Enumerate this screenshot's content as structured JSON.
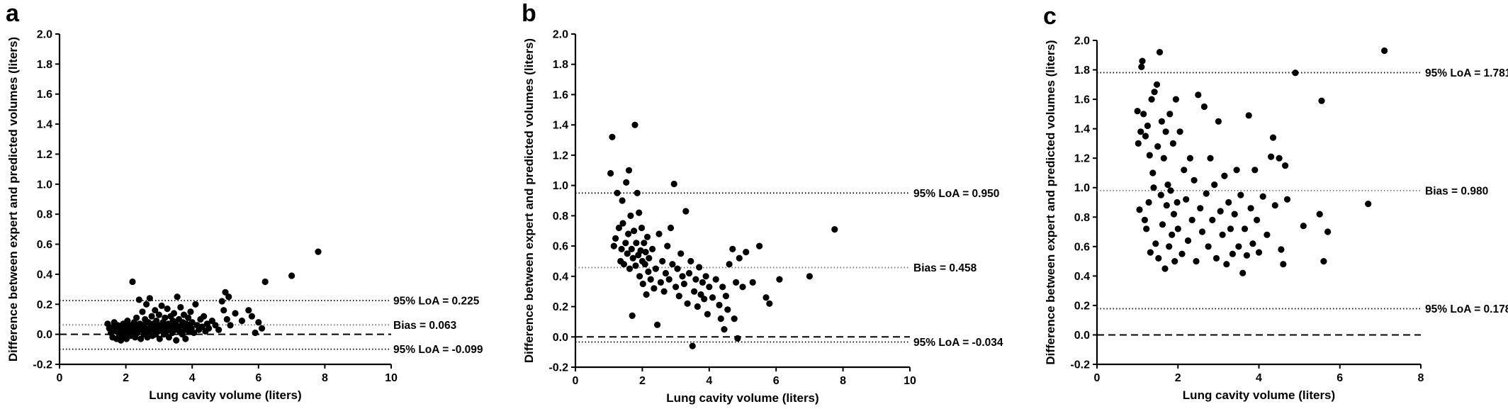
{
  "chart_data": [
    {
      "panel": "a",
      "type": "scatter",
      "xlabel": "Lung cavity volume (liters)",
      "ylabel": "Difference between expert and predicted volumes (liters)",
      "xlim": [
        0,
        10
      ],
      "ylim": [
        -0.2,
        2.0
      ],
      "xticks": [
        "0",
        "2",
        "4",
        "6",
        "8",
        "10"
      ],
      "yticks": [
        "-0.2",
        "0.0",
        "0.2",
        "0.4",
        "0.6",
        "0.8",
        "1.0",
        "1.2",
        "1.4",
        "1.6",
        "1.8",
        "2.0"
      ],
      "reference_lines": [
        {
          "label": "95% LoA = 0.225",
          "y": 0.225,
          "style": "dotted"
        },
        {
          "label": "Bias = 0.063",
          "y": 0.063,
          "style": "dotted"
        },
        {
          "label": "95% LoA = -0.099",
          "y": -0.099,
          "style": "dotted"
        },
        {
          "label": "",
          "y": 0.0,
          "style": "dashed"
        }
      ],
      "points": [
        [
          1.45,
          0.07
        ],
        [
          1.5,
          0.04
        ],
        [
          1.55,
          0.01
        ],
        [
          1.6,
          -0.02
        ],
        [
          1.62,
          0.05
        ],
        [
          1.65,
          0.08
        ],
        [
          1.7,
          0.02
        ],
        [
          1.72,
          -0.03
        ],
        [
          1.75,
          0.06
        ],
        [
          1.8,
          0.0
        ],
        [
          1.82,
          0.03
        ],
        [
          1.85,
          -0.04
        ],
        [
          1.88,
          0.04
        ],
        [
          1.9,
          0.01
        ],
        [
          1.92,
          0.07
        ],
        [
          1.95,
          -0.02
        ],
        [
          1.98,
          0.05
        ],
        [
          2.0,
          0.02
        ],
        [
          2.02,
          -0.03
        ],
        [
          2.05,
          0.09
        ],
        [
          2.08,
          0.03
        ],
        [
          2.1,
          0.0
        ],
        [
          2.12,
          0.06
        ],
        [
          2.15,
          -0.01
        ],
        [
          2.18,
          0.04
        ],
        [
          2.2,
          0.35
        ],
        [
          2.22,
          0.02
        ],
        [
          2.25,
          0.08
        ],
        [
          2.28,
          -0.02
        ],
        [
          2.3,
          0.05
        ],
        [
          2.32,
          0.11
        ],
        [
          2.35,
          0.01
        ],
        [
          2.38,
          0.04
        ],
        [
          2.4,
          0.23
        ],
        [
          2.42,
          0.07
        ],
        [
          2.45,
          -0.03
        ],
        [
          2.48,
          0.03
        ],
        [
          2.5,
          0.15
        ],
        [
          2.52,
          0.06
        ],
        [
          2.55,
          0.0
        ],
        [
          2.58,
          0.1
        ],
        [
          2.6,
          0.04
        ],
        [
          2.62,
          0.2
        ],
        [
          2.65,
          -0.02
        ],
        [
          2.68,
          0.08
        ],
        [
          2.7,
          0.02
        ],
        [
          2.72,
          0.24
        ],
        [
          2.75,
          0.05
        ],
        [
          2.78,
          0.12
        ],
        [
          2.8,
          -0.01
        ],
        [
          2.82,
          0.07
        ],
        [
          2.85,
          0.03
        ],
        [
          2.88,
          0.16
        ],
        [
          2.9,
          0.0
        ],
        [
          2.92,
          0.09
        ],
        [
          2.95,
          0.05
        ],
        [
          2.98,
          0.02
        ],
        [
          3.0,
          0.13
        ],
        [
          3.02,
          -0.03
        ],
        [
          3.05,
          0.06
        ],
        [
          3.08,
          0.19
        ],
        [
          3.1,
          0.03
        ],
        [
          3.12,
          0.08
        ],
        [
          3.15,
          0.0
        ],
        [
          3.18,
          0.11
        ],
        [
          3.2,
          0.05
        ],
        [
          3.22,
          0.02
        ],
        [
          3.25,
          0.17
        ],
        [
          3.28,
          0.07
        ],
        [
          3.3,
          -0.02
        ],
        [
          3.32,
          0.04
        ],
        [
          3.35,
          0.12
        ],
        [
          3.38,
          0.06
        ],
        [
          3.4,
          0.01
        ],
        [
          3.42,
          0.09
        ],
        [
          3.45,
          0.14
        ],
        [
          3.48,
          0.03
        ],
        [
          3.5,
          0.07
        ],
        [
          3.52,
          -0.04
        ],
        [
          3.55,
          0.25
        ],
        [
          3.58,
          0.05
        ],
        [
          3.6,
          0.1
        ],
        [
          3.62,
          0.02
        ],
        [
          3.65,
          0.18
        ],
        [
          3.68,
          0.06
        ],
        [
          3.7,
          0.0
        ],
        [
          3.72,
          0.08
        ],
        [
          3.75,
          0.13
        ],
        [
          3.78,
          0.03
        ],
        [
          3.8,
          -0.03
        ],
        [
          3.82,
          0.07
        ],
        [
          3.85,
          0.04
        ],
        [
          3.88,
          0.11
        ],
        [
          3.9,
          0.02
        ],
        [
          3.92,
          0.06
        ],
        [
          3.95,
          0.15
        ],
        [
          3.98,
          0.04
        ],
        [
          4.0,
          0.08
        ],
        [
          4.05,
          0.01
        ],
        [
          4.1,
          0.2
        ],
        [
          4.15,
          0.06
        ],
        [
          4.2,
          0.03
        ],
        [
          4.25,
          0.1
        ],
        [
          4.3,
          0.05
        ],
        [
          4.35,
          0.12
        ],
        [
          4.4,
          0.02
        ],
        [
          4.45,
          0.07
        ],
        [
          4.5,
          0.04
        ],
        [
          4.6,
          0.09
        ],
        [
          4.7,
          0.06
        ],
        [
          4.8,
          0.03
        ],
        [
          4.9,
          0.22
        ],
        [
          4.95,
          0.16
        ],
        [
          5.0,
          0.28
        ],
        [
          5.05,
          0.1
        ],
        [
          5.1,
          0.25
        ],
        [
          5.15,
          0.06
        ],
        [
          5.3,
          0.14
        ],
        [
          5.5,
          0.09
        ],
        [
          5.7,
          0.16
        ],
        [
          5.8,
          0.12
        ],
        [
          5.9,
          0.01
        ],
        [
          6.0,
          0.08
        ],
        [
          6.1,
          0.04
        ],
        [
          6.2,
          0.35
        ],
        [
          7.0,
          0.39
        ],
        [
          7.8,
          0.55
        ]
      ]
    },
    {
      "panel": "b",
      "type": "scatter",
      "xlabel": "Lung cavity volume (liters)",
      "ylabel": "Difference between expert and predicted volumes (liters)",
      "xlim": [
        0,
        10
      ],
      "ylim": [
        -0.2,
        2.0
      ],
      "xticks": [
        "0",
        "2",
        "4",
        "6",
        "8",
        "10"
      ],
      "yticks": [
        "-0.2",
        "0.0",
        "0.2",
        "0.4",
        "0.6",
        "0.8",
        "1.0",
        "1.2",
        "1.4",
        "1.6",
        "1.8",
        "2.0"
      ],
      "reference_lines": [
        {
          "label": "95% LoA = 0.950",
          "y": 0.95,
          "style": "dotted"
        },
        {
          "label": "Bias = 0.458",
          "y": 0.458,
          "style": "dotted"
        },
        {
          "label": "95% LoA = -0.034",
          "y": -0.034,
          "style": "dotted"
        },
        {
          "label": "",
          "y": 0.0,
          "style": "dashed"
        }
      ],
      "points": [
        [
          1.05,
          1.08
        ],
        [
          1.1,
          1.32
        ],
        [
          1.15,
          0.6
        ],
        [
          1.2,
          0.65
        ],
        [
          1.25,
          0.95
        ],
        [
          1.3,
          0.72
        ],
        [
          1.35,
          0.5
        ],
        [
          1.38,
          0.58
        ],
        [
          1.4,
          0.9
        ],
        [
          1.42,
          0.75
        ],
        [
          1.45,
          0.48
        ],
        [
          1.5,
          0.62
        ],
        [
          1.52,
          1.02
        ],
        [
          1.55,
          0.55
        ],
        [
          1.58,
          0.68
        ],
        [
          1.6,
          1.1
        ],
        [
          1.62,
          0.45
        ],
        [
          1.65,
          0.8
        ],
        [
          1.68,
          0.58
        ],
        [
          1.7,
          0.14
        ],
        [
          1.72,
          0.52
        ],
        [
          1.75,
          0.7
        ],
        [
          1.78,
          1.4
        ],
        [
          1.8,
          0.47
        ],
        [
          1.82,
          0.62
        ],
        [
          1.85,
          0.95
        ],
        [
          1.88,
          0.54
        ],
        [
          1.9,
          0.82
        ],
        [
          1.92,
          0.4
        ],
        [
          1.95,
          0.57
        ],
        [
          1.98,
          0.72
        ],
        [
          2.0,
          0.5
        ],
        [
          2.02,
          0.35
        ],
        [
          2.05,
          0.62
        ],
        [
          2.08,
          0.48
        ],
        [
          2.1,
          0.56
        ],
        [
          2.12,
          0.28
        ],
        [
          2.15,
          0.66
        ],
        [
          2.18,
          0.43
        ],
        [
          2.2,
          0.52
        ],
        [
          2.25,
          0.38
        ],
        [
          2.3,
          0.58
        ],
        [
          2.35,
          0.32
        ],
        [
          2.4,
          0.45
        ],
        [
          2.45,
          0.08
        ],
        [
          2.5,
          0.68
        ],
        [
          2.55,
          0.36
        ],
        [
          2.6,
          0.5
        ],
        [
          2.65,
          0.3
        ],
        [
          2.7,
          0.42
        ],
        [
          2.75,
          0.6
        ],
        [
          2.8,
          0.38
        ],
        [
          2.85,
          0.72
        ],
        [
          2.9,
          0.48
        ],
        [
          2.95,
          1.01
        ],
        [
          3.0,
          0.33
        ],
        [
          3.05,
          0.45
        ],
        [
          3.1,
          0.27
        ],
        [
          3.15,
          0.55
        ],
        [
          3.2,
          0.4
        ],
        [
          3.25,
          0.35
        ],
        [
          3.3,
          0.83
        ],
        [
          3.35,
          0.22
        ],
        [
          3.4,
          0.42
        ],
        [
          3.45,
          0.5
        ],
        [
          3.5,
          -0.06
        ],
        [
          3.55,
          0.3
        ],
        [
          3.6,
          0.38
        ],
        [
          3.65,
          0.2
        ],
        [
          3.7,
          0.46
        ],
        [
          3.75,
          0.28
        ],
        [
          3.8,
          0.36
        ],
        [
          3.85,
          0.25
        ],
        [
          3.9,
          0.4
        ],
        [
          3.95,
          0.15
        ],
        [
          4.0,
          0.33
        ],
        [
          4.1,
          0.26
        ],
        [
          4.2,
          0.38
        ],
        [
          4.3,
          0.21
        ],
        [
          4.35,
          0.12
        ],
        [
          4.4,
          0.33
        ],
        [
          4.45,
          0.05
        ],
        [
          4.5,
          0.27
        ],
        [
          4.55,
          0.18
        ],
        [
          4.6,
          0.48
        ],
        [
          4.7,
          0.58
        ],
        [
          4.75,
          0.12
        ],
        [
          4.8,
          0.36
        ],
        [
          4.85,
          -0.01
        ],
        [
          4.9,
          0.52
        ],
        [
          5.0,
          0.33
        ],
        [
          5.1,
          0.56
        ],
        [
          5.3,
          0.36
        ],
        [
          5.5,
          0.6
        ],
        [
          5.7,
          0.26
        ],
        [
          5.8,
          0.22
        ],
        [
          6.1,
          0.38
        ],
        [
          7.0,
          0.4
        ],
        [
          7.75,
          0.71
        ]
      ]
    },
    {
      "panel": "c",
      "type": "scatter",
      "xlabel": "Lung cavity volume (liters)",
      "ylabel": "Difference between expert and predicted volumes (liters)",
      "xlim": [
        0,
        8
      ],
      "ylim": [
        -0.2,
        2.0
      ],
      "xticks": [
        "0",
        "2",
        "4",
        "6",
        "8"
      ],
      "yticks": [
        "-0.2",
        "0.0",
        "0.2",
        "0.4",
        "0.6",
        "0.8",
        "1.0",
        "1.2",
        "1.4",
        "1.6",
        "1.8",
        "2.0"
      ],
      "reference_lines": [
        {
          "label": "95% LoA = 1.781",
          "y": 1.781,
          "style": "dotted"
        },
        {
          "label": "Bias = 0.980",
          "y": 0.98,
          "style": "dotted"
        },
        {
          "label": "95% LoA = 0.178",
          "y": 0.178,
          "style": "dotted"
        },
        {
          "label": "",
          "y": 0.0,
          "style": "dashed"
        }
      ],
      "points": [
        [
          1.0,
          1.52
        ],
        [
          1.02,
          1.3
        ],
        [
          1.05,
          0.85
        ],
        [
          1.08,
          1.38
        ],
        [
          1.1,
          1.82
        ],
        [
          1.12,
          1.86
        ],
        [
          1.15,
          1.5
        ],
        [
          1.18,
          0.78
        ],
        [
          1.2,
          1.35
        ],
        [
          1.22,
          0.72
        ],
        [
          1.25,
          1.42
        ],
        [
          1.28,
          0.9
        ],
        [
          1.3,
          1.22
        ],
        [
          1.32,
          0.56
        ],
        [
          1.35,
          1.6
        ],
        [
          1.38,
          1.1
        ],
        [
          1.4,
          1.0
        ],
        [
          1.42,
          1.65
        ],
        [
          1.45,
          0.62
        ],
        [
          1.48,
          1.7
        ],
        [
          1.5,
          1.28
        ],
        [
          1.52,
          0.52
        ],
        [
          1.55,
          1.92
        ],
        [
          1.58,
          0.95
        ],
        [
          1.6,
          1.45
        ],
        [
          1.62,
          0.75
        ],
        [
          1.65,
          1.2
        ],
        [
          1.68,
          0.45
        ],
        [
          1.7,
          1.38
        ],
        [
          1.72,
          0.88
        ],
        [
          1.75,
          1.02
        ],
        [
          1.78,
          0.6
        ],
        [
          1.8,
          1.5
        ],
        [
          1.82,
          0.98
        ],
        [
          1.85,
          0.68
        ],
        [
          1.88,
          1.3
        ],
        [
          1.9,
          0.82
        ],
        [
          1.92,
          0.5
        ],
        [
          1.95,
          1.6
        ],
        [
          1.98,
          0.9
        ],
        [
          2.0,
          0.72
        ],
        [
          2.05,
          1.38
        ],
        [
          2.1,
          0.55
        ],
        [
          2.15,
          1.12
        ],
        [
          2.2,
          0.92
        ],
        [
          2.25,
          0.64
        ],
        [
          2.3,
          1.2
        ],
        [
          2.35,
          0.78
        ],
        [
          2.4,
          1.05
        ],
        [
          2.45,
          0.5
        ],
        [
          2.5,
          1.63
        ],
        [
          2.55,
          0.86
        ],
        [
          2.6,
          0.7
        ],
        [
          2.65,
          1.55
        ],
        [
          2.7,
          0.96
        ],
        [
          2.75,
          0.6
        ],
        [
          2.8,
          1.2
        ],
        [
          2.85,
          0.78
        ],
        [
          2.9,
          1.02
        ],
        [
          2.95,
          0.52
        ],
        [
          3.0,
          1.45
        ],
        [
          3.05,
          0.84
        ],
        [
          3.1,
          0.68
        ],
        [
          3.15,
          1.08
        ],
        [
          3.2,
          0.48
        ],
        [
          3.25,
          0.9
        ],
        [
          3.3,
          0.72
        ],
        [
          3.35,
          0.55
        ],
        [
          3.4,
          0.82
        ],
        [
          3.45,
          1.12
        ],
        [
          3.5,
          0.6
        ],
        [
          3.55,
          0.95
        ],
        [
          3.6,
          0.42
        ],
        [
          3.65,
          0.72
        ],
        [
          3.7,
          0.54
        ],
        [
          3.75,
          1.49
        ],
        [
          3.8,
          0.86
        ],
        [
          3.85,
          0.62
        ],
        [
          3.9,
          1.12
        ],
        [
          3.95,
          0.78
        ],
        [
          4.0,
          0.56
        ],
        [
          4.1,
          0.94
        ],
        [
          4.2,
          0.68
        ],
        [
          4.3,
          1.21
        ],
        [
          4.35,
          1.34
        ],
        [
          4.4,
          0.88
        ],
        [
          4.5,
          1.2
        ],
        [
          4.55,
          0.58
        ],
        [
          4.6,
          0.48
        ],
        [
          4.65,
          1.15
        ],
        [
          4.7,
          0.92
        ],
        [
          4.9,
          1.78
        ],
        [
          5.1,
          0.74
        ],
        [
          5.5,
          0.82
        ],
        [
          5.55,
          1.59
        ],
        [
          5.6,
          0.5
        ],
        [
          5.7,
          0.7
        ],
        [
          6.7,
          0.89
        ],
        [
          7.1,
          1.93
        ]
      ]
    }
  ]
}
